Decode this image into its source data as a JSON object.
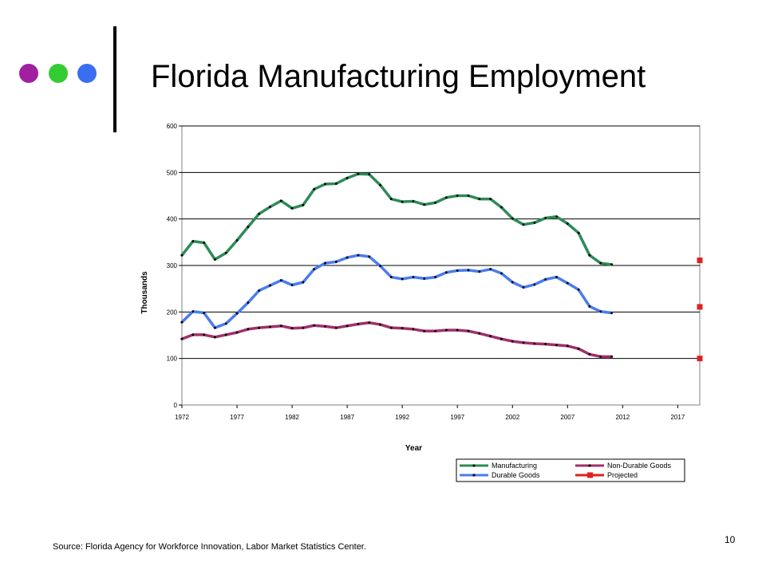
{
  "slide": {
    "title": "Florida Manufacturing Employment",
    "source": "Source: Florida Agency for Workforce Innovation, Labor Market Statistics Center.",
    "page_number": "10",
    "decoration_dots": [
      "#a020a0",
      "#33cc33",
      "#3a6ef0"
    ]
  },
  "chart_data": {
    "type": "line",
    "xlabel": "Year",
    "ylabel": "Thousands",
    "xlim": [
      1972,
      2019
    ],
    "ylim": [
      0,
      600
    ],
    "xticks": [
      1972,
      1977,
      1982,
      1987,
      1992,
      1997,
      2002,
      2007,
      2012,
      2017
    ],
    "yticks": [
      0,
      100,
      200,
      300,
      400,
      500,
      600
    ],
    "grid": "horizontal",
    "legend": "bottom-right",
    "years": [
      1972,
      1973,
      1974,
      1975,
      1976,
      1977,
      1978,
      1979,
      1980,
      1981,
      1982,
      1983,
      1984,
      1985,
      1986,
      1987,
      1988,
      1989,
      1990,
      1991,
      1992,
      1993,
      1994,
      1995,
      1996,
      1997,
      1998,
      1999,
      2000,
      2001,
      2002,
      2003,
      2004,
      2005,
      2006,
      2007,
      2008,
      2009,
      2010,
      2011
    ],
    "series": [
      {
        "name": "Manufacturing",
        "color": "#2e8b57",
        "values": [
          322,
          352,
          349,
          313,
          327,
          354,
          383,
          411,
          426,
          439,
          423,
          430,
          464,
          475,
          476,
          488,
          497,
          496,
          473,
          443,
          437,
          438,
          431,
          435,
          446,
          450,
          450,
          443,
          443,
          425,
          401,
          388,
          392,
          402,
          405,
          390,
          370,
          322,
          305,
          302
        ]
      },
      {
        "name": "Durable Goods",
        "color": "#4a7cf0",
        "values": [
          178,
          201,
          198,
          166,
          175,
          197,
          220,
          246,
          257,
          268,
          258,
          264,
          292,
          305,
          308,
          317,
          322,
          319,
          299,
          275,
          271,
          275,
          272,
          275,
          285,
          289,
          290,
          287,
          292,
          283,
          264,
          253,
          259,
          270,
          275,
          262,
          248,
          212,
          201,
          198
        ]
      },
      {
        "name": "Non-Durable Goods",
        "color": "#a0306a",
        "values": [
          142,
          151,
          151,
          146,
          151,
          156,
          163,
          166,
          168,
          170,
          165,
          166,
          171,
          169,
          166,
          170,
          174,
          177,
          173,
          166,
          165,
          163,
          159,
          159,
          161,
          161,
          159,
          154,
          148,
          142,
          137,
          134,
          132,
          131,
          129,
          127,
          121,
          109,
          104,
          104
        ]
      },
      {
        "name": "Projected",
        "color": "#e02020",
        "x": [
          2019,
          2019,
          2019
        ],
        "values": [
          311,
          211,
          100
        ]
      }
    ]
  }
}
